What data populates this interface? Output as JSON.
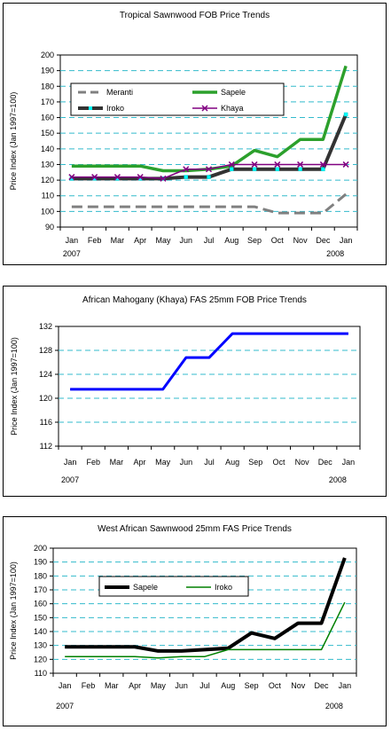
{
  "chart_data": [
    {
      "type": "line",
      "title": "Tropical Sawnwood FOB Price Trends",
      "ylabel": "Price Index (Jan 1997=100)",
      "xlabel": "",
      "ylim": [
        90,
        200
      ],
      "yticks": [
        90,
        100,
        110,
        120,
        130,
        140,
        150,
        160,
        170,
        180,
        190,
        200
      ],
      "categories": [
        "Jan",
        "Feb",
        "Mar",
        "Apr",
        "May",
        "Jun",
        "Jul",
        "Aug",
        "Sep",
        "Oct",
        "Nov",
        "Dec",
        "Jan"
      ],
      "year_labels": [
        "2007",
        "2008"
      ],
      "grid": true,
      "legend_position": "top-left inside plot",
      "series": [
        {
          "name": "Meranti",
          "color": "#808080",
          "style": "dashed",
          "marker": "none",
          "values": [
            103,
            103,
            103,
            103,
            103,
            103,
            103,
            103,
            103,
            99,
            99,
            99,
            111
          ]
        },
        {
          "name": "Sapele",
          "color": "#2ca02c",
          "style": "solid",
          "marker": "none",
          "values": [
            129,
            129,
            129,
            129,
            126,
            126,
            127,
            129,
            139,
            135,
            146,
            146,
            193
          ]
        },
        {
          "name": "Iroko",
          "color": "#333333",
          "style": "solid",
          "marker": "square-cyan",
          "values": [
            121,
            121,
            121,
            121,
            121,
            122,
            122,
            127,
            127,
            127,
            127,
            127,
            162
          ]
        },
        {
          "name": "Khaya",
          "color": "#800080",
          "style": "solid",
          "marker": "x",
          "values": [
            122,
            122,
            122,
            122,
            121,
            127,
            127,
            130,
            130,
            130,
            130,
            130,
            130
          ]
        }
      ]
    },
    {
      "type": "line",
      "title": "African Mahogany (Khaya) FAS 25mm FOB Price Trends",
      "ylabel": "Price Index (Jan 1997=100)",
      "xlabel": "",
      "ylim": [
        112,
        132
      ],
      "yticks": [
        112,
        116,
        120,
        124,
        128,
        132
      ],
      "categories": [
        "Jan",
        "Feb",
        "Mar",
        "Apr",
        "May",
        "Jun",
        "Jul",
        "Aug",
        "Sep",
        "Oct",
        "Nov",
        "Dec",
        "Jan"
      ],
      "year_labels": [
        "2007",
        "2008"
      ],
      "grid": true,
      "series": [
        {
          "name": "",
          "color": "#0000ff",
          "style": "solid",
          "marker": "none",
          "values": [
            121.5,
            121.5,
            121.5,
            121.5,
            121.5,
            126.8,
            126.8,
            130.8,
            130.8,
            130.8,
            130.8,
            130.8,
            130.8
          ]
        }
      ]
    },
    {
      "type": "line",
      "title": "West African Sawnwood 25mm FAS Price Trends",
      "ylabel": "Price Index (Jan 1997=100)",
      "xlabel": "",
      "ylim": [
        110,
        200
      ],
      "yticks": [
        110,
        120,
        130,
        140,
        150,
        160,
        170,
        180,
        190,
        200
      ],
      "categories": [
        "Jan",
        "Feb",
        "Mar",
        "Apr",
        "May",
        "Jun",
        "Jul",
        "Aug",
        "Sep",
        "Oct",
        "Nov",
        "Dec",
        "Jan"
      ],
      "year_labels": [
        "2007",
        "2008"
      ],
      "grid": true,
      "legend_position": "top-center inside plot",
      "series": [
        {
          "name": "Sapele",
          "color": "#000000",
          "style": "solid",
          "marker": "none",
          "values": [
            129,
            129,
            129,
            129,
            126,
            126,
            127,
            128,
            139,
            135,
            146,
            146,
            193
          ]
        },
        {
          "name": "Iroko",
          "color": "#008000",
          "style": "solid",
          "marker": "none",
          "values": [
            122,
            122,
            122,
            122,
            121,
            122,
            122,
            127,
            127,
            127,
            127,
            127,
            161
          ]
        }
      ]
    }
  ]
}
